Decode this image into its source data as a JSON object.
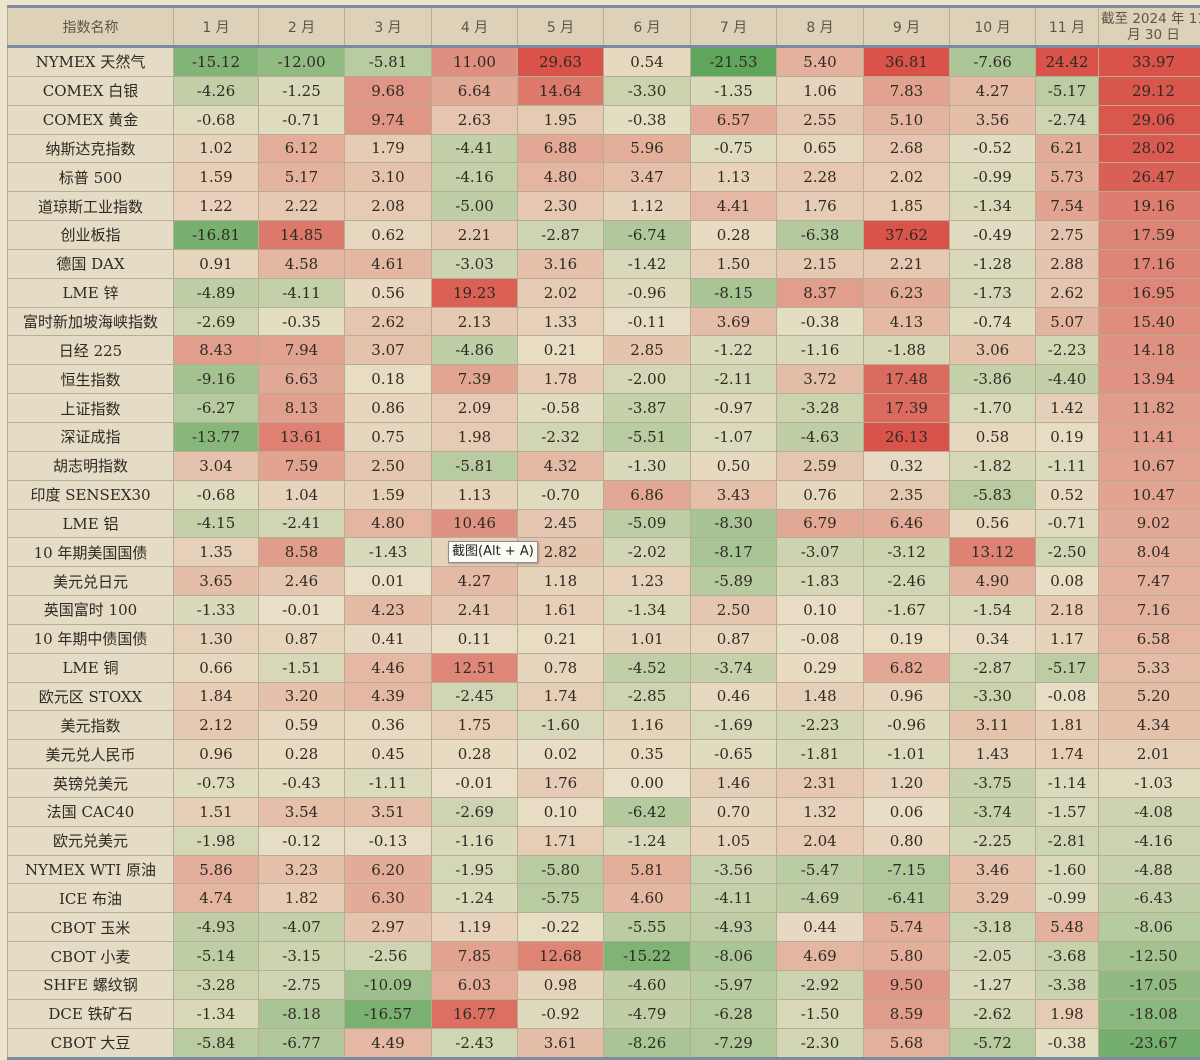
{
  "table": {
    "columns": [
      "指数名称",
      "1 月",
      "2 月",
      "3 月",
      "4 月",
      "5 月",
      "6 月",
      "7 月",
      "8 月",
      "9 月",
      "10 月",
      "11 月",
      "截至 2024 年 11 月 30 日"
    ],
    "rows": [
      {
        "name": "NYMEX 天然气",
        "values": [
          "-15.12",
          "-12.00",
          "-5.81",
          "11.00",
          "29.63",
          "0.54",
          "-21.53",
          "5.40",
          "36.81",
          "-7.66",
          "24.42",
          "33.97"
        ]
      },
      {
        "name": "COMEX 白银",
        "values": [
          "-4.26",
          "-1.25",
          "9.68",
          "6.64",
          "14.64",
          "-3.30",
          "-1.35",
          "1.06",
          "7.83",
          "4.27",
          "-5.17",
          "29.12"
        ]
      },
      {
        "name": "COMEX 黄金",
        "values": [
          "-0.68",
          "-0.71",
          "9.74",
          "2.63",
          "1.95",
          "-0.38",
          "6.57",
          "2.55",
          "5.10",
          "3.56",
          "-2.74",
          "29.06"
        ]
      },
      {
        "name": "纳斯达克指数",
        "values": [
          "1.02",
          "6.12",
          "1.79",
          "-4.41",
          "6.88",
          "5.96",
          "-0.75",
          "0.65",
          "2.68",
          "-0.52",
          "6.21",
          "28.02"
        ]
      },
      {
        "name": "标普 500",
        "values": [
          "1.59",
          "5.17",
          "3.10",
          "-4.16",
          "4.80",
          "3.47",
          "1.13",
          "2.28",
          "2.02",
          "-0.99",
          "5.73",
          "26.47"
        ]
      },
      {
        "name": "道琼斯工业指数",
        "values": [
          "1.22",
          "2.22",
          "2.08",
          "-5.00",
          "2.30",
          "1.12",
          "4.41",
          "1.76",
          "1.85",
          "-1.34",
          "7.54",
          "19.16"
        ]
      },
      {
        "name": "创业板指",
        "values": [
          "-16.81",
          "14.85",
          "0.62",
          "2.21",
          "-2.87",
          "-6.74",
          "0.28",
          "-6.38",
          "37.62",
          "-0.49",
          "2.75",
          "17.59"
        ]
      },
      {
        "name": "德国 DAX",
        "values": [
          "0.91",
          "4.58",
          "4.61",
          "-3.03",
          "3.16",
          "-1.42",
          "1.50",
          "2.15",
          "2.21",
          "-1.28",
          "2.88",
          "17.16"
        ]
      },
      {
        "name": "LME 锌",
        "values": [
          "-4.89",
          "-4.11",
          "0.56",
          "19.23",
          "2.02",
          "-0.96",
          "-8.15",
          "8.37",
          "6.23",
          "-1.73",
          "2.62",
          "16.95"
        ]
      },
      {
        "name": "富时新加坡海峡指数",
        "values": [
          "-2.69",
          "-0.35",
          "2.62",
          "2.13",
          "1.33",
          "-0.11",
          "3.69",
          "-0.38",
          "4.13",
          "-0.74",
          "5.07",
          "15.40"
        ]
      },
      {
        "name": "日经 225",
        "values": [
          "8.43",
          "7.94",
          "3.07",
          "-4.86",
          "0.21",
          "2.85",
          "-1.22",
          "-1.16",
          "-1.88",
          "3.06",
          "-2.23",
          "14.18"
        ]
      },
      {
        "name": "恒生指数",
        "values": [
          "-9.16",
          "6.63",
          "0.18",
          "7.39",
          "1.78",
          "-2.00",
          "-2.11",
          "3.72",
          "17.48",
          "-3.86",
          "-4.40",
          "13.94"
        ]
      },
      {
        "name": "上证指数",
        "values": [
          "-6.27",
          "8.13",
          "0.86",
          "2.09",
          "-0.58",
          "-3.87",
          "-0.97",
          "-3.28",
          "17.39",
          "-1.70",
          "1.42",
          "11.82"
        ]
      },
      {
        "name": "深证成指",
        "values": [
          "-13.77",
          "13.61",
          "0.75",
          "1.98",
          "-2.32",
          "-5.51",
          "-1.07",
          "-4.63",
          "26.13",
          "0.58",
          "0.19",
          "11.41"
        ]
      },
      {
        "name": "胡志明指数",
        "values": [
          "3.04",
          "7.59",
          "2.50",
          "-5.81",
          "4.32",
          "-1.30",
          "0.50",
          "2.59",
          "0.32",
          "-1.82",
          "-1.11",
          "10.67"
        ]
      },
      {
        "name": "印度 SENSEX30",
        "values": [
          "-0.68",
          "1.04",
          "1.59",
          "1.13",
          "-0.70",
          "6.86",
          "3.43",
          "0.76",
          "2.35",
          "-5.83",
          "0.52",
          "10.47"
        ]
      },
      {
        "name": "LME 铝",
        "values": [
          "-4.15",
          "-2.41",
          "4.80",
          "10.46",
          "2.45",
          "-5.09",
          "-8.30",
          "6.79",
          "6.46",
          "0.56",
          "-0.71",
          "9.02"
        ]
      },
      {
        "name": "10 年期美国国债",
        "values": [
          "1.35",
          "8.58",
          "-1.43",
          "1",
          "2.82",
          "-2.02",
          "-8.17",
          "-3.07",
          "-3.12",
          "13.12",
          "-2.50",
          "8.04"
        ]
      },
      {
        "name": "美元兑日元",
        "values": [
          "3.65",
          "2.46",
          "0.01",
          "4.27",
          "1.18",
          "1.23",
          "-5.89",
          "-1.83",
          "-2.46",
          "4.90",
          "0.08",
          "7.47"
        ]
      },
      {
        "name": "英国富时 100",
        "values": [
          "-1.33",
          "-0.01",
          "4.23",
          "2.41",
          "1.61",
          "-1.34",
          "2.50",
          "0.10",
          "-1.67",
          "-1.54",
          "2.18",
          "7.16"
        ]
      },
      {
        "name": "10 年期中债国债",
        "values": [
          "1.30",
          "0.87",
          "0.41",
          "0.11",
          "0.21",
          "1.01",
          "0.87",
          "-0.08",
          "0.19",
          "0.34",
          "1.17",
          "6.58"
        ]
      },
      {
        "name": "LME 铜",
        "values": [
          "0.66",
          "-1.51",
          "4.46",
          "12.51",
          "0.78",
          "-4.52",
          "-3.74",
          "0.29",
          "6.82",
          "-2.87",
          "-5.17",
          "5.33"
        ]
      },
      {
        "name": "欧元区 STOXX",
        "values": [
          "1.84",
          "3.20",
          "4.39",
          "-2.45",
          "1.74",
          "-2.85",
          "0.46",
          "1.48",
          "0.96",
          "-3.30",
          "-0.08",
          "5.20"
        ]
      },
      {
        "name": "美元指数",
        "values": [
          "2.12",
          "0.59",
          "0.36",
          "1.75",
          "-1.60",
          "1.16",
          "-1.69",
          "-2.23",
          "-0.96",
          "3.11",
          "1.81",
          "4.34"
        ]
      },
      {
        "name": "美元兑人民币",
        "values": [
          "0.96",
          "0.28",
          "0.45",
          "0.28",
          "0.02",
          "0.35",
          "-0.65",
          "-1.81",
          "-1.01",
          "1.43",
          "1.74",
          "2.01"
        ]
      },
      {
        "name": "英镑兑美元",
        "values": [
          "-0.73",
          "-0.43",
          "-1.11",
          "-0.01",
          "1.76",
          "0.00",
          "1.46",
          "2.31",
          "1.20",
          "-3.75",
          "-1.14",
          "-1.03"
        ]
      },
      {
        "name": "法国 CAC40",
        "values": [
          "1.51",
          "3.54",
          "3.51",
          "-2.69",
          "0.10",
          "-6.42",
          "0.70",
          "1.32",
          "0.06",
          "-3.74",
          "-1.57",
          "-4.08"
        ]
      },
      {
        "name": "欧元兑美元",
        "values": [
          "-1.98",
          "-0.12",
          "-0.13",
          "-1.16",
          "1.71",
          "-1.24",
          "1.05",
          "2.04",
          "0.80",
          "-2.25",
          "-2.81",
          "-4.16"
        ]
      },
      {
        "name": "NYMEX WTI 原油",
        "values": [
          "5.86",
          "3.23",
          "6.20",
          "-1.95",
          "-5.80",
          "5.81",
          "-3.56",
          "-5.47",
          "-7.15",
          "3.46",
          "-1.60",
          "-4.88"
        ]
      },
      {
        "name": "ICE 布油",
        "values": [
          "4.74",
          "1.82",
          "6.30",
          "-1.24",
          "-5.75",
          "4.60",
          "-4.11",
          "-4.69",
          "-6.41",
          "3.29",
          "-0.99",
          "-6.43"
        ]
      },
      {
        "name": "CBOT 玉米",
        "values": [
          "-4.93",
          "-4.07",
          "2.97",
          "1.19",
          "-0.22",
          "-5.55",
          "-4.93",
          "0.44",
          "5.74",
          "-3.18",
          "5.48",
          "-8.06"
        ]
      },
      {
        "name": "CBOT 小麦",
        "values": [
          "-5.14",
          "-3.15",
          "-2.56",
          "7.85",
          "12.68",
          "-15.22",
          "-8.06",
          "4.69",
          "5.80",
          "-2.05",
          "-3.68",
          "-12.50"
        ]
      },
      {
        "name": "SHFE 螺纹钢",
        "values": [
          "-3.28",
          "-2.75",
          "-10.09",
          "6.03",
          "0.98",
          "-4.60",
          "-5.97",
          "-2.92",
          "9.50",
          "-1.27",
          "-3.38",
          "-17.05"
        ]
      },
      {
        "name": "DCE 铁矿石",
        "values": [
          "-1.34",
          "-8.18",
          "-16.57",
          "16.77",
          "-0.92",
          "-4.79",
          "-6.28",
          "-1.50",
          "8.59",
          "-2.62",
          "1.98",
          "-18.08"
        ]
      },
      {
        "name": "CBOT 大豆",
        "values": [
          "-5.84",
          "-6.77",
          "4.49",
          "-2.43",
          "3.61",
          "-8.26",
          "-7.29",
          "-2.30",
          "5.68",
          "-5.72",
          "-0.38",
          "-23.67"
        ]
      }
    ]
  },
  "colors": {
    "positive": "#d9534a",
    "negative": "#5da55a",
    "neutral": "#e8dfc6"
  },
  "tooltip": {
    "text": "截图(Alt + A)"
  }
}
